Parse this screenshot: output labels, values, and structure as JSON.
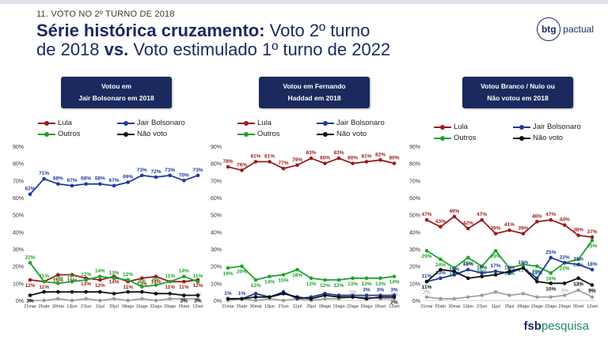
{
  "header": {
    "kicker": "11. VOTO NO 2º TURNO DE 2018",
    "title_bold_1": "Série histórica cruzamento:",
    "title_rest_1": " Voto 2º turno",
    "title_line2_a": "de 2018 ",
    "title_bold_2": "vs.",
    "title_line2_b": " Voto estimulado 1º turno de 2022"
  },
  "brand": {
    "btg_mark": "btg",
    "btg_text": "pactual",
    "fsb_a": "fsb",
    "fsb_b": "pesquisa"
  },
  "legend_labels": {
    "lula": "Lula",
    "bolsonaro": "Jair Bolsonaro",
    "outros": "Outros",
    "naovoto": "Não voto"
  },
  "colors": {
    "lula": "#9b1b1b",
    "bolsonaro": "#1f3b9c",
    "outros": "#1ea32a",
    "naovoto": "#111111",
    "gray": "#9a9a9a",
    "navy": "#1b2a5e"
  },
  "chart_data": [
    {
      "type": "line",
      "title": "Votou em Jair Bolsonaro em 2018",
      "panel_line1": "Votou em",
      "panel_line2": "Jair Bolsonaro em 2018",
      "x": [
        "21mar",
        "25abr",
        "30mai",
        "13jun",
        "27jun",
        "11jul",
        "25jul",
        "08ago",
        "15ago",
        "22ago",
        "29ago",
        "05set",
        "12set"
      ],
      "ylim": [
        0,
        90
      ],
      "yticks": [
        "0%",
        "10%",
        "20%",
        "30%",
        "40%",
        "50%",
        "60%",
        "70%",
        "80%",
        "90%"
      ],
      "series": [
        {
          "name": "Jair Bolsonaro",
          "color": "#1f3b9c",
          "values": [
            62,
            71,
            68,
            67,
            68,
            68,
            67,
            69,
            73,
            72,
            73,
            70,
            73
          ]
        },
        {
          "name": "Lula",
          "color": "#9b1b1b",
          "values": [
            12,
            11,
            15,
            15,
            13,
            12,
            14,
            11,
            13,
            14,
            11,
            11,
            12
          ]
        },
        {
          "name": "Outros",
          "color": "#1ea32a",
          "values": [
            22,
            11,
            10,
            11,
            12,
            14,
            13,
            12,
            8,
            9,
            11,
            14,
            11
          ]
        },
        {
          "name": "Não voto",
          "color": "#111111",
          "values": [
            3,
            5,
            5,
            5,
            5,
            5,
            4,
            5,
            5,
            4,
            4,
            3,
            3
          ]
        }
      ],
      "extra_series": [
        {
          "color": "#9a9a9a",
          "values": [
            0,
            0,
            1,
            0,
            1,
            0,
            1,
            0,
            1,
            0,
            1,
            1,
            1
          ]
        }
      ],
      "point_labels": [
        {
          "series": "Jair Bolsonaro",
          "labels": [
            "62%",
            "71%",
            "68%",
            "67%",
            "68%",
            "68%",
            "67%",
            "69%",
            "73%",
            "72%",
            "73%",
            "70%",
            "73%"
          ]
        },
        {
          "series": "Lula",
          "labels": [
            "12%",
            "11%",
            "15%",
            "15%",
            "13%",
            "12%",
            "14%",
            "11%",
            "13%",
            "14%",
            "11%",
            "11%",
            "12%"
          ]
        },
        {
          "series": "Outros",
          "labels": [
            "22%",
            "11%",
            "10%",
            "11%",
            "12%",
            "14%",
            "13%",
            "12%",
            "8%",
            "9%",
            "11%",
            "14%",
            "11%"
          ]
        },
        {
          "series": "Não voto",
          "labels": [
            "3%",
            "",
            "",
            "",
            "",
            "",
            "",
            "",
            "",
            "",
            "",
            "3%",
            "3%"
          ]
        }
      ],
      "extra_labels": [
        "",
        "",
        "",
        "",
        "",
        "",
        "",
        "",
        "",
        "",
        "",
        "",
        "1%"
      ]
    },
    {
      "type": "line",
      "title": "Votou em Fernando Haddad em 2018",
      "panel_line1": "Votou em Fernando",
      "panel_line2": "Haddad em 2018",
      "x": [
        "21mar",
        "25abr",
        "30mai",
        "13jun",
        "27jun",
        "11jul",
        "25jul",
        "08ago",
        "15ago",
        "22ago",
        "29ago",
        "05set",
        "12set"
      ],
      "ylim": [
        0,
        90
      ],
      "yticks": [
        "0%",
        "10%",
        "20%",
        "30%",
        "40%",
        "50%",
        "60%",
        "70%",
        "80%",
        "90%"
      ],
      "series": [
        {
          "name": "Lula",
          "color": "#9b1b1b",
          "values": [
            78,
            76,
            81,
            81,
            77,
            79,
            83,
            80,
            83,
            80,
            81,
            82,
            80
          ]
        },
        {
          "name": "Outros",
          "color": "#1ea32a",
          "values": [
            19,
            20,
            12,
            14,
            15,
            18,
            13,
            12,
            12,
            13,
            13,
            13,
            14
          ]
        },
        {
          "name": "Jair Bolsonaro",
          "color": "#1f3b9c",
          "values": [
            1,
            1,
            4,
            2,
            5,
            1,
            2,
            4,
            3,
            3,
            3,
            3,
            3
          ]
        },
        {
          "name": "Não voto",
          "color": "#111111",
          "values": [
            1,
            1,
            2,
            2,
            4,
            2,
            1,
            3,
            2,
            2,
            1,
            2,
            2
          ]
        }
      ],
      "extra_series": [
        {
          "color": "#9a9a9a",
          "values": [
            0,
            1,
            0,
            1,
            0,
            1,
            0,
            1,
            1,
            2,
            2,
            1,
            1
          ]
        }
      ],
      "point_labels": [
        {
          "series": "Lula",
          "labels": [
            "78%",
            "76%",
            "81%",
            "81%",
            "77%",
            "79%",
            "83%",
            "80%",
            "83%",
            "80%",
            "81%",
            "82%",
            "80%"
          ]
        },
        {
          "series": "Outros",
          "labels": [
            "19%",
            "20%",
            "12%",
            "14%",
            "15%",
            "18%",
            "13%",
            "12%",
            "12%",
            "13%",
            "13%",
            "13%",
            "14%"
          ]
        },
        {
          "series": "Jair Bolsonaro",
          "labels": [
            "1%",
            "1%",
            "",
            "",
            "",
            "",
            "",
            "",
            "",
            "",
            "3%",
            "3%",
            "3%"
          ]
        },
        {
          "series": "Não voto",
          "labels": [
            "",
            "",
            "",
            "",
            "",
            "",
            "",
            "",
            "",
            "",
            "",
            "",
            "2%"
          ]
        }
      ],
      "extra_labels": [
        "",
        "",
        "",
        "",
        "",
        "",
        "",
        "",
        "",
        "2%",
        "",
        "",
        "1%"
      ]
    },
    {
      "type": "line",
      "title": "Votou Branco / Nulo ou Não votou em 2018",
      "panel_line1": "Votou Branco / Nulo ou",
      "panel_line2": "Não votou em 2018",
      "x": [
        "21mar",
        "25abr",
        "30mai",
        "13jun",
        "27jun",
        "11jul",
        "25jul",
        "08ago",
        "15ago",
        "22ago",
        "29ago",
        "05set",
        "12set"
      ],
      "ylim": [
        0,
        90
      ],
      "yticks": [
        "0%",
        "10%",
        "20%",
        "30%",
        "40%",
        "50%",
        "60%",
        "70%",
        "80%",
        "90%"
      ],
      "series": [
        {
          "name": "Lula",
          "color": "#9b1b1b",
          "values": [
            47,
            43,
            49,
            42,
            47,
            39,
            41,
            39,
            46,
            47,
            44,
            38,
            37
          ]
        },
        {
          "name": "Outros",
          "color": "#1ea32a",
          "values": [
            29,
            24,
            19,
            25,
            20,
            29,
            19,
            21,
            20,
            16,
            22,
            24,
            35
          ]
        },
        {
          "name": "Jair Bolsonaro",
          "color": "#1f3b9c",
          "values": [
            11,
            13,
            15,
            18,
            16,
            17,
            16,
            19,
            13,
            25,
            22,
            21,
            18
          ]
        },
        {
          "name": "Não voto",
          "color": "#111111",
          "values": [
            11,
            18,
            17,
            13,
            14,
            15,
            17,
            19,
            11,
            10,
            10,
            13,
            9
          ]
        }
      ],
      "extra_series": [
        {
          "color": "#9a9a9a",
          "values": [
            2,
            1,
            1,
            2,
            3,
            5,
            3,
            4,
            2,
            2,
            3,
            6,
            2
          ]
        }
      ],
      "point_labels": [
        {
          "series": "Lula",
          "labels": [
            "47%",
            "43%",
            "49%",
            "42%",
            "47%",
            "39%",
            "41%",
            "39%",
            "46%",
            "47%",
            "44%",
            "38%",
            "37%"
          ]
        },
        {
          "series": "Outros",
          "labels": [
            "29%",
            "24%",
            "19%",
            "25%",
            "20%",
            "29%",
            "19%",
            "21%",
            "20%",
            "16%",
            "22%",
            "24%",
            "35%"
          ]
        },
        {
          "series": "Jair Bolsonaro",
          "labels": [
            "11%",
            "13%",
            "15%",
            "18%",
            "16%",
            "17%",
            "16%",
            "19%",
            "13%",
            "25%",
            "22%",
            "21%",
            "18%"
          ]
        },
        {
          "series": "Não voto",
          "labels": [
            "11%",
            "",
            "",
            "",
            "",
            "",
            "",
            "",
            "",
            "10%",
            "",
            "13%",
            "9%"
          ]
        }
      ],
      "extra_labels": [
        "2%",
        "",
        "",
        "",
        "",
        "",
        "",
        "",
        "",
        "",
        "3%",
        "6%",
        "2%"
      ]
    }
  ]
}
